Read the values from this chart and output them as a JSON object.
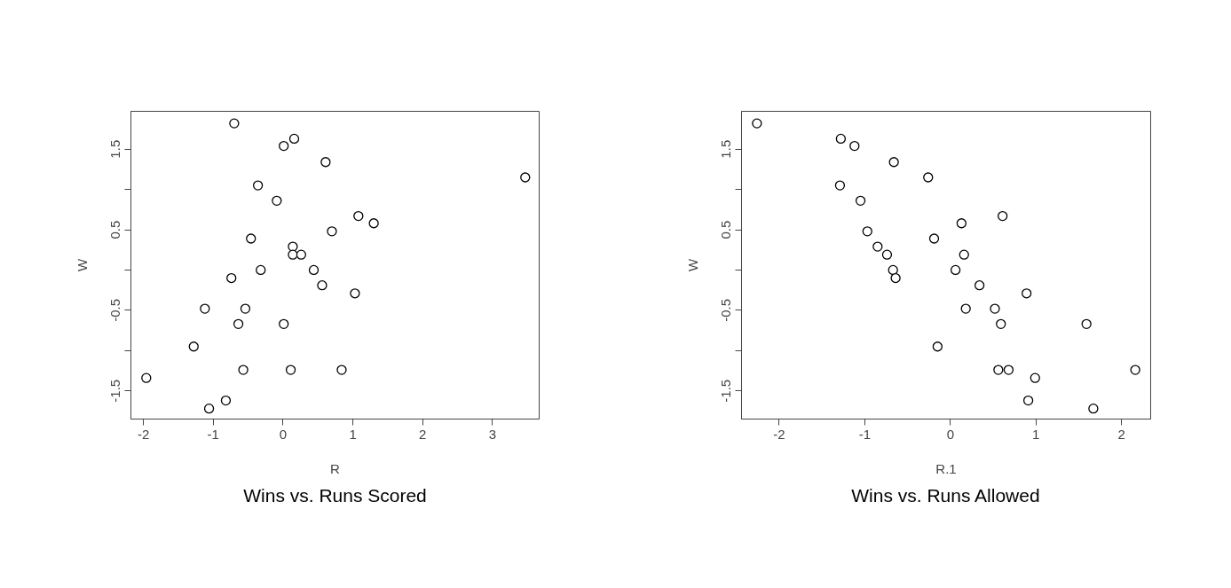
{
  "chart_data": [
    {
      "type": "scatter",
      "title": "Wins vs. Runs Scored",
      "xlabel": "R",
      "ylabel": "W",
      "marker": "circle",
      "grid": false,
      "xlim": [
        -2.18,
        3.67
      ],
      "ylim": [
        -1.85,
        1.97
      ],
      "xticks": [
        -2,
        -1,
        0,
        1,
        2,
        3
      ],
      "yticks": [
        {
          "value": -1.5,
          "label": "-1.5"
        },
        {
          "value": -1,
          "label": null
        },
        {
          "value": -0.5,
          "label": "-0.5"
        },
        {
          "value": 0,
          "label": null
        },
        {
          "value": 0.5,
          "label": "0.5"
        },
        {
          "value": 1,
          "label": null
        },
        {
          "value": 1.5,
          "label": "1.5"
        }
      ],
      "series": [
        {
          "color": "#000000",
          "x": [
            -0.7,
            0.16,
            0.01,
            0.61,
            -0.36,
            -0.09,
            1.08,
            1.3,
            0.7,
            -0.46,
            0.14,
            0.14,
            0.26,
            -0.32,
            0.44,
            -0.74,
            0.56,
            1.03,
            -1.12,
            -0.54,
            -0.64,
            0.01,
            -1.28,
            -0.57,
            0.11,
            0.84,
            -1.96,
            -0.82,
            -1.06,
            3.47
          ],
          "values": [
            1.82,
            1.63,
            1.54,
            1.34,
            1.05,
            0.86,
            0.67,
            0.58,
            0.48,
            0.39,
            0.29,
            0.19,
            0.19,
            0.0,
            0.0,
            -0.1,
            -0.19,
            -0.29,
            -0.48,
            -0.48,
            -0.67,
            -0.67,
            -0.95,
            -1.24,
            -1.24,
            -1.24,
            -1.34,
            -1.62,
            -1.72,
            1.15
          ]
        }
      ]
    },
    {
      "type": "scatter",
      "title": "Wins vs. Runs Allowed",
      "xlabel": "R.1",
      "ylabel": "W",
      "marker": "circle",
      "grid": false,
      "xlim": [
        -2.44,
        2.34
      ],
      "ylim": [
        -1.85,
        1.97
      ],
      "xticks": [
        -2,
        -1,
        0,
        1,
        2
      ],
      "yticks": [
        {
          "value": -1.5,
          "label": "-1.5"
        },
        {
          "value": -1,
          "label": null
        },
        {
          "value": -0.5,
          "label": "-0.5"
        },
        {
          "value": 0,
          "label": null
        },
        {
          "value": 0.5,
          "label": "0.5"
        },
        {
          "value": 1,
          "label": null
        },
        {
          "value": 1.5,
          "label": "1.5"
        }
      ],
      "series": [
        {
          "color": "#000000",
          "x": [
            -2.26,
            -1.28,
            -1.12,
            -0.66,
            -0.26,
            -1.29,
            -1.05,
            -0.97,
            -0.85,
            -0.74,
            -0.67,
            -0.64,
            0.61,
            0.13,
            -0.19,
            0.16,
            0.06,
            0.34,
            0.89,
            0.18,
            0.52,
            0.59,
            1.59,
            -0.15,
            0.56,
            0.68,
            2.16,
            0.99,
            0.91,
            1.67
          ],
          "values": [
            1.82,
            1.63,
            1.54,
            1.34,
            1.15,
            1.05,
            0.86,
            0.48,
            0.29,
            0.19,
            0.0,
            -0.1,
            0.67,
            0.58,
            0.39,
            0.19,
            0.0,
            -0.19,
            -0.29,
            -0.48,
            -0.48,
            -0.67,
            -0.67,
            -0.95,
            -1.24,
            -1.24,
            -1.24,
            -1.34,
            -1.62,
            -1.72
          ]
        }
      ]
    }
  ]
}
